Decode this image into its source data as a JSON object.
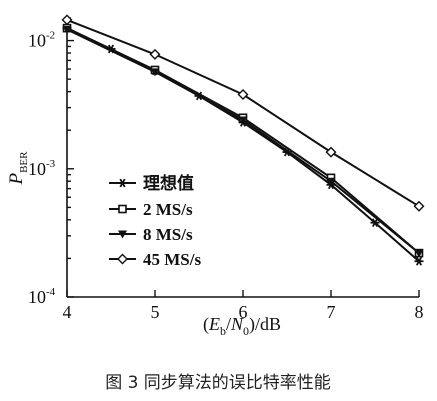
{
  "caption": "图 3   同步算法的误比特率性能",
  "chart_data": {
    "type": "line",
    "title": "",
    "xlabel": "(E_b/N_0)/dB",
    "ylabel": "P_BER",
    "x_ticks": [
      4,
      5,
      6,
      7,
      8
    ],
    "xlim": [
      4,
      8
    ],
    "ylim": [
      0.0001,
      0.015
    ],
    "y_scale": "log",
    "y_ticks": [
      {
        "value": 0.01,
        "base": "10",
        "exp": "-2"
      },
      {
        "value": 0.001,
        "base": "10",
        "exp": "-3"
      },
      {
        "value": 0.0001,
        "base": "10",
        "exp": "-4"
      }
    ],
    "legend_position": "lower-left",
    "series": [
      {
        "name": "理想值",
        "marker": "asterisk",
        "x": [
          4,
          4.5,
          5,
          5.5,
          6,
          6.5,
          7,
          7.5,
          8
        ],
        "y": [
          0.0125,
          0.0086,
          0.0058,
          0.0037,
          0.0023,
          0.00135,
          0.00075,
          0.00038,
          0.00019
        ]
      },
      {
        "name": "2 MS/s",
        "marker": "square",
        "x": [
          4,
          5,
          6,
          7,
          8
        ],
        "y": [
          0.0125,
          0.0059,
          0.0025,
          0.00085,
          0.00022
        ]
      },
      {
        "name": "8 MS/s",
        "marker": "triangle-down",
        "x": [
          4,
          5,
          6,
          7,
          8
        ],
        "y": [
          0.0122,
          0.0057,
          0.0024,
          0.0008,
          0.00022
        ]
      },
      {
        "name": "45 MS/s",
        "marker": "diamond",
        "x": [
          4,
          5,
          6,
          7,
          8
        ],
        "y": [
          0.0145,
          0.0078,
          0.0038,
          0.00135,
          0.00051
        ]
      }
    ]
  }
}
